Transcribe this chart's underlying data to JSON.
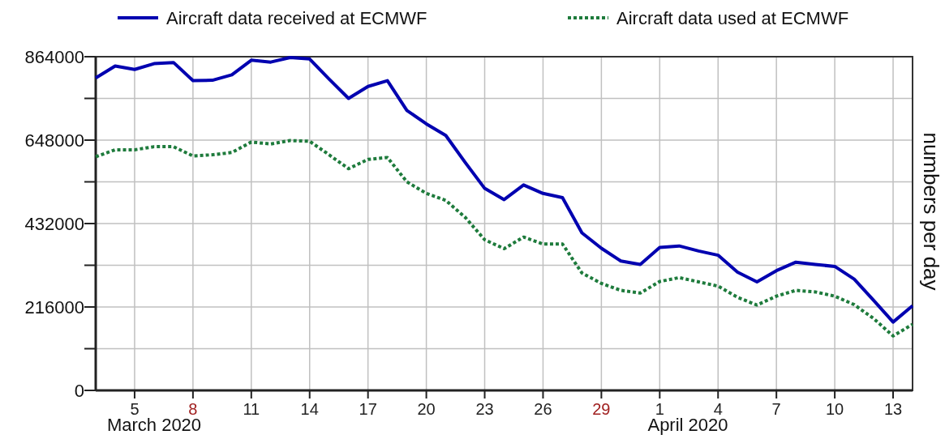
{
  "chart_data": {
    "type": "line",
    "ylabel": "numbers per day",
    "legend": "top",
    "grid": true,
    "x": [
      "2020-03-03",
      "2020-03-04",
      "2020-03-05",
      "2020-03-06",
      "2020-03-07",
      "2020-03-08",
      "2020-03-09",
      "2020-03-10",
      "2020-03-11",
      "2020-03-12",
      "2020-03-13",
      "2020-03-14",
      "2020-03-15",
      "2020-03-16",
      "2020-03-17",
      "2020-03-18",
      "2020-03-19",
      "2020-03-20",
      "2020-03-21",
      "2020-03-22",
      "2020-03-23",
      "2020-03-24",
      "2020-03-25",
      "2020-03-26",
      "2020-03-27",
      "2020-03-28",
      "2020-03-29",
      "2020-03-30",
      "2020-03-31",
      "2020-04-01",
      "2020-04-02",
      "2020-04-03",
      "2020-04-04",
      "2020-04-05",
      "2020-04-06",
      "2020-04-07",
      "2020-04-08",
      "2020-04-09",
      "2020-04-10",
      "2020-04-11",
      "2020-04-12",
      "2020-04-13",
      "2020-04-14"
    ],
    "series": [
      {
        "name": "Aircraft data received at ECMWF",
        "color": "#0000b0",
        "line_style": "solid",
        "values": [
          809000,
          840000,
          831000,
          846000,
          849000,
          802000,
          803000,
          817000,
          855000,
          850000,
          862000,
          858000,
          806000,
          756000,
          787000,
          802000,
          725000,
          690000,
          660000,
          590000,
          523000,
          494000,
          532000,
          510000,
          499000,
          408000,
          368000,
          335000,
          326000,
          370000,
          374000,
          361000,
          350000,
          306000,
          281000,
          310000,
          332000,
          326000,
          321000,
          288000,
          233000,
          177000,
          219000
        ]
      },
      {
        "name": "Aircraft data used at ECMWF",
        "color": "#1e7b3c",
        "line_style": "dotted",
        "values": [
          605000,
          623000,
          623000,
          631000,
          631000,
          607000,
          610000,
          616000,
          643000,
          638000,
          647000,
          645000,
          610000,
          574000,
          598000,
          603000,
          540000,
          510000,
          492000,
          448000,
          390000,
          367000,
          397000,
          379000,
          379000,
          304000,
          277000,
          259000,
          252000,
          282000,
          292000,
          281000,
          270000,
          241000,
          221000,
          244000,
          259000,
          255000,
          244000,
          222000,
          186000,
          141000,
          171000
        ]
      }
    ],
    "xlim": [
      "2020-03-03",
      "2020-04-14"
    ],
    "xticks": [
      {
        "value": "2020-03-05",
        "label": "5"
      },
      {
        "value": "2020-03-08",
        "label": "8"
      },
      {
        "value": "2020-03-11",
        "label": "11"
      },
      {
        "value": "2020-03-14",
        "label": "14"
      },
      {
        "value": "2020-03-17",
        "label": "17"
      },
      {
        "value": "2020-03-20",
        "label": "20"
      },
      {
        "value": "2020-03-23",
        "label": "23"
      },
      {
        "value": "2020-03-26",
        "label": "26"
      },
      {
        "value": "2020-03-29",
        "label": "29"
      },
      {
        "value": "2020-04-01",
        "label": "1"
      },
      {
        "value": "2020-04-04",
        "label": "4"
      },
      {
        "value": "2020-04-07",
        "label": "7"
      },
      {
        "value": "2020-04-10",
        "label": "10"
      },
      {
        "value": "2020-04-13",
        "label": "13"
      }
    ],
    "ylim": [
      0,
      864000
    ],
    "yticks": [
      0,
      {
        "value": 108000,
        "label": null
      },
      216000,
      {
        "value": 324000,
        "label": null
      },
      432000,
      {
        "value": 540000,
        "label": null
      },
      648000,
      {
        "value": 756000,
        "label": null
      },
      864000
    ],
    "annotations": [
      "March 2020",
      "April 2020"
    ]
  }
}
